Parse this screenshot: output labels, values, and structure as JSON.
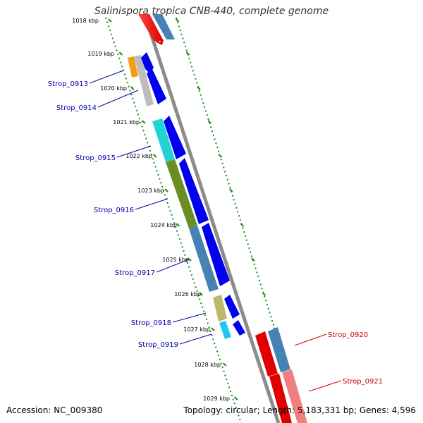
{
  "title": "Salinispora tropica CNB-440, complete genome",
  "accession": "Accession: NC_009380",
  "summary": "Topology: circular; Length: 5,183,331 bp; Genes: 4,596",
  "colors": {
    "backbone": "#8c8c8c",
    "ticks": "#1a8a1a",
    "label_forward": "#0000aa",
    "label_reverse": "#cc0000",
    "cds_strand": "#0000ee"
  },
  "ticks": [
    "1018 kbp",
    "1019 kbp",
    "1020 kbp",
    "1021 kbp",
    "1022 kbp",
    "1023 kbp",
    "1024 kbp",
    "1025 kbp",
    "1026 kbp",
    "1027 kbp",
    "1028 kbp",
    "1029 kbp"
  ],
  "left_genes": [
    {
      "id": "Strop_0913",
      "color": "#f39c12"
    },
    {
      "id": "Strop_0914",
      "color": "#bdbdbd"
    },
    {
      "id": "Strop_0915",
      "color": "#22d3d6"
    },
    {
      "id": "Strop_0916",
      "color": "#6b8e23"
    },
    {
      "id": "Strop_0917",
      "color": "#4682b4"
    },
    {
      "id": "Strop_0918",
      "color": "#bdb76b"
    },
    {
      "id": "Strop_0919",
      "color": "#22c8ee"
    }
  ],
  "right_genes": [
    {
      "id": "Strop_0920",
      "color": "#4682b4"
    },
    {
      "id": "Strop_0921",
      "color": "#f08080"
    }
  ]
}
